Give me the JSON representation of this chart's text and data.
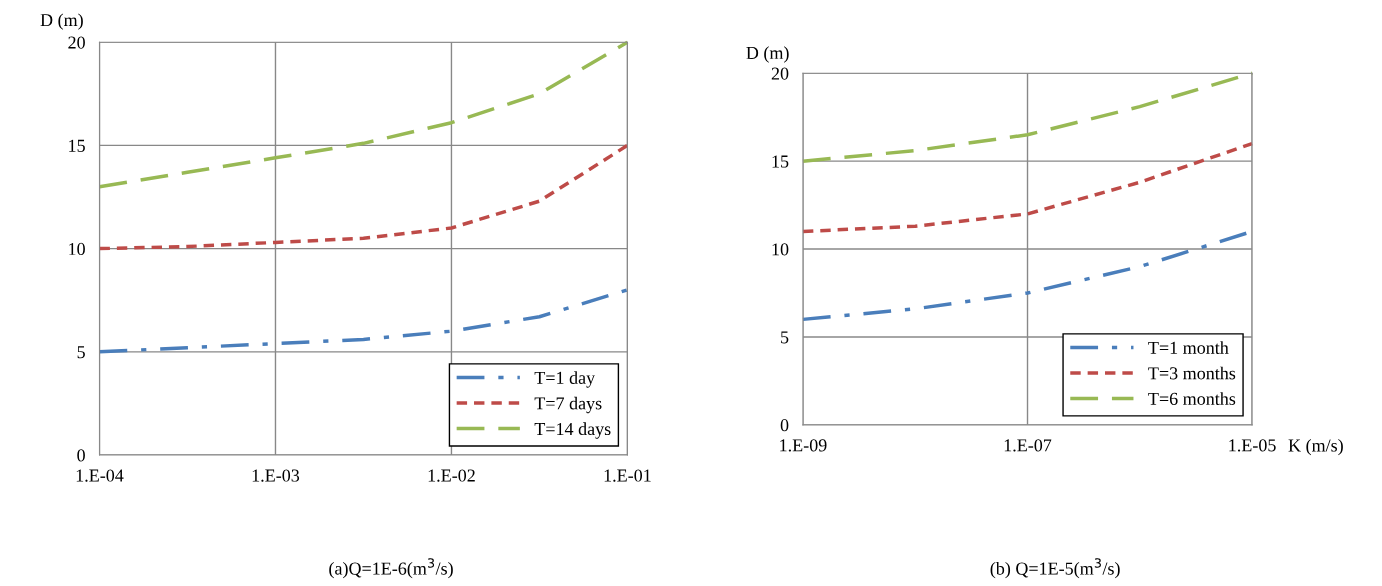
{
  "chart_data": [
    {
      "type": "line",
      "title": "(a)Q=1E-6(m$^{3}$/s)",
      "ylabel": "D (m)",
      "grid": true,
      "legend": "bottom right",
      "marker": "none",
      "ylim": [
        0,
        20
      ],
      "yticks": [
        0,
        5,
        10,
        15,
        20
      ],
      "categories": [
        "1.E-04",
        null,
        "1.E-03",
        null,
        "1.E-02",
        null,
        "1.E-01"
      ],
      "series": [
        {
          "name": "T=1 day",
          "color": "#4a7ebb",
          "line_style": "dashdot",
          "values": [
            5.0,
            5.2,
            5.4,
            5.6,
            6.0,
            6.7,
            8.0
          ]
        },
        {
          "name": "T=7 days",
          "color": "#be4b48",
          "line_style": "dotted",
          "values": [
            10.0,
            10.1,
            10.3,
            10.5,
            11.0,
            12.3,
            15.0
          ]
        },
        {
          "name": "T=14 days",
          "color": "#98b954",
          "line_style": "dashed",
          "values": [
            13.0,
            13.7,
            14.4,
            15.1,
            16.1,
            17.5,
            20.0
          ]
        }
      ]
    },
    {
      "type": "line",
      "title": "(b) Q=1E-5(m$^{3}$/s)",
      "ylabel": "D (m)",
      "xlabel": "K (m/s)",
      "grid": true,
      "legend": "bottom right",
      "marker": "none",
      "ylim": [
        0,
        20
      ],
      "yticks": [
        0,
        5,
        10,
        15,
        20
      ],
      "categories": [
        "1.E-09",
        null,
        "1.E-07",
        null,
        "1.E-05"
      ],
      "series": [
        {
          "name": "T=1 month",
          "color": "#4a7ebb",
          "line_style": "dashdot",
          "values": [
            6.0,
            6.6,
            7.5,
            9.0,
            11.0
          ]
        },
        {
          "name": "T=3 months",
          "color": "#be4b48",
          "line_style": "dotted",
          "values": [
            11.0,
            11.3,
            12.0,
            13.8,
            16.0
          ]
        },
        {
          "name": "T=6 months",
          "color": "#98b954",
          "line_style": "dashed",
          "values": [
            15.0,
            15.6,
            16.5,
            18.1,
            20.0
          ]
        }
      ]
    }
  ]
}
